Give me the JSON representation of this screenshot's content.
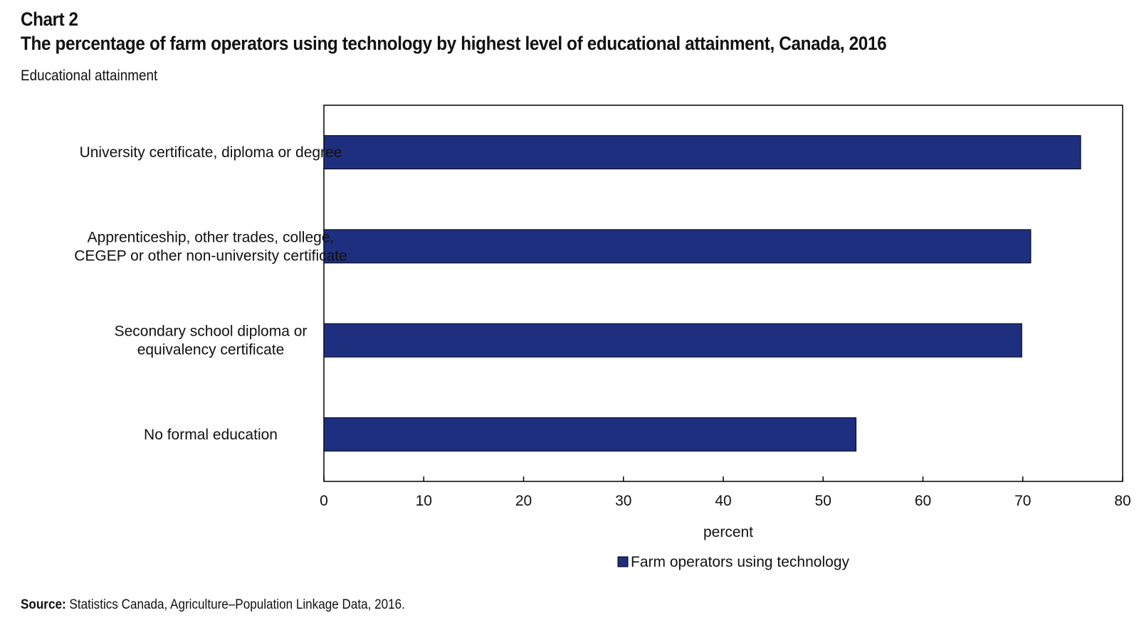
{
  "header": {
    "chart_number": "Chart 2",
    "title": "The percentage of farm operators using technology by highest level of educational attainment, Canada, 2016",
    "y_caption": "Educational attainment"
  },
  "footer": {
    "source_label": "Source:",
    "source_text": "Statistics Canada, Agriculture–Population Linkage Data, 2016."
  },
  "colors": {
    "bar": "#1f2f7f",
    "axis": "#000000"
  },
  "chart_data": {
    "type": "bar",
    "orientation": "horizontal",
    "title": "The percentage of farm operators using technology by highest level of educational attainment, Canada, 2016",
    "ylabel": "Educational attainment",
    "xlabel": "percent",
    "xlim": [
      0,
      80
    ],
    "xticks": [
      0,
      10,
      20,
      30,
      40,
      50,
      60,
      70,
      80
    ],
    "grid": false,
    "legend": "bottom",
    "categories": [
      [
        "University certificate, diploma or degree"
      ],
      [
        "Apprenticeship, other trades, college,",
        "CEGEP or other non-university certificate"
      ],
      [
        "Secondary school diploma or",
        "equivalency certificate"
      ],
      [
        "No formal education"
      ]
    ],
    "series": [
      {
        "name": "Farm operators using technology",
        "values": [
          75.8,
          70.8,
          69.9,
          53.3
        ]
      }
    ]
  }
}
